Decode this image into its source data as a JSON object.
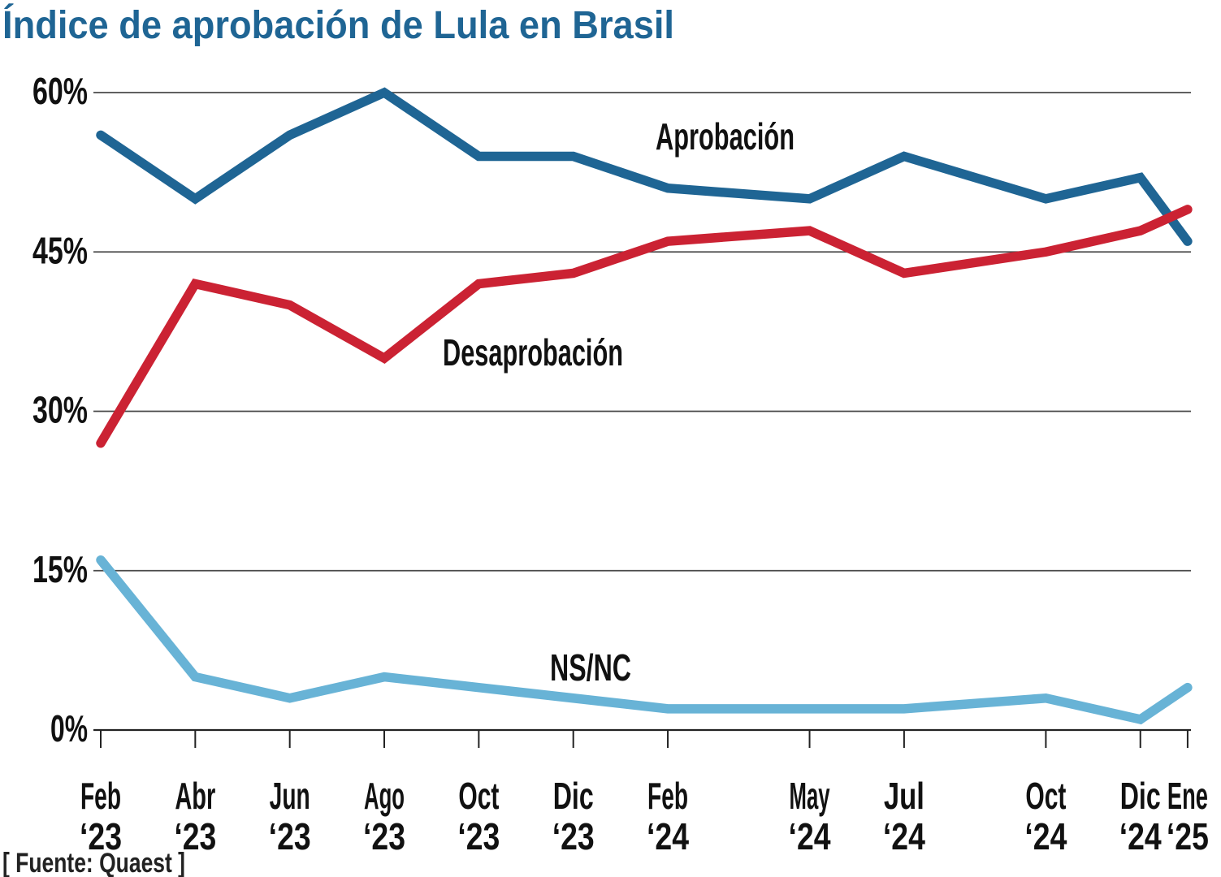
{
  "page": {
    "title": "Índice de aprobación de Lula en Brasil",
    "source": "[ Fuente: Quaest ]"
  },
  "chart_data": {
    "type": "line",
    "title": "Índice de aprobación de Lula en Brasil",
    "source": "[ Fuente: Quaest ]",
    "grid": true,
    "legend_position": "inline-annotations",
    "ylim": [
      0,
      60
    ],
    "y_ticks": [
      {
        "value": 0,
        "label": "0%"
      },
      {
        "value": 15,
        "label": "15%"
      },
      {
        "value": 30,
        "label": "30%"
      },
      {
        "value": 45,
        "label": "45%"
      },
      {
        "value": 60,
        "label": "60%"
      }
    ],
    "x_months_offset": [
      0,
      2,
      4,
      6,
      8,
      10,
      12,
      15,
      17,
      20,
      22,
      23
    ],
    "x_tick_labels": [
      {
        "month": "Feb",
        "year": "‘23"
      },
      {
        "month": "Abr",
        "year": "‘23"
      },
      {
        "month": "Jun",
        "year": "‘23"
      },
      {
        "month": "Ago",
        "year": "‘23"
      },
      {
        "month": "Oct",
        "year": "‘23"
      },
      {
        "month": "Dic",
        "year": "‘23"
      },
      {
        "month": "Feb",
        "year": "‘24"
      },
      {
        "month": "May",
        "year": "‘24"
      },
      {
        "month": "Jul",
        "year": "‘24"
      },
      {
        "month": "Oct",
        "year": "‘24"
      },
      {
        "month": "Dic",
        "year": "‘24"
      },
      {
        "month": "Ene",
        "year": "‘25"
      }
    ],
    "series": [
      {
        "name": "Aprobación",
        "color": "#1f6594",
        "values": [
          56,
          50,
          56,
          60,
          54,
          54,
          51,
          50,
          54,
          50,
          52,
          46
        ]
      },
      {
        "name": "Desaprobación",
        "color": "#cb2233",
        "values": [
          27,
          42,
          40,
          35,
          42,
          43,
          46,
          47,
          43,
          45,
          47,
          49
        ]
      },
      {
        "name": "NS/NC",
        "color": "#68b3d6",
        "values": [
          16,
          5,
          3,
          5,
          4,
          3,
          2,
          2,
          2,
          3,
          1,
          4
        ]
      }
    ]
  },
  "colors": {
    "title": "#1f6594",
    "text": "#111111",
    "gridline": "#4a4a4a",
    "axis": "#222222",
    "background": "#ffffff"
  }
}
